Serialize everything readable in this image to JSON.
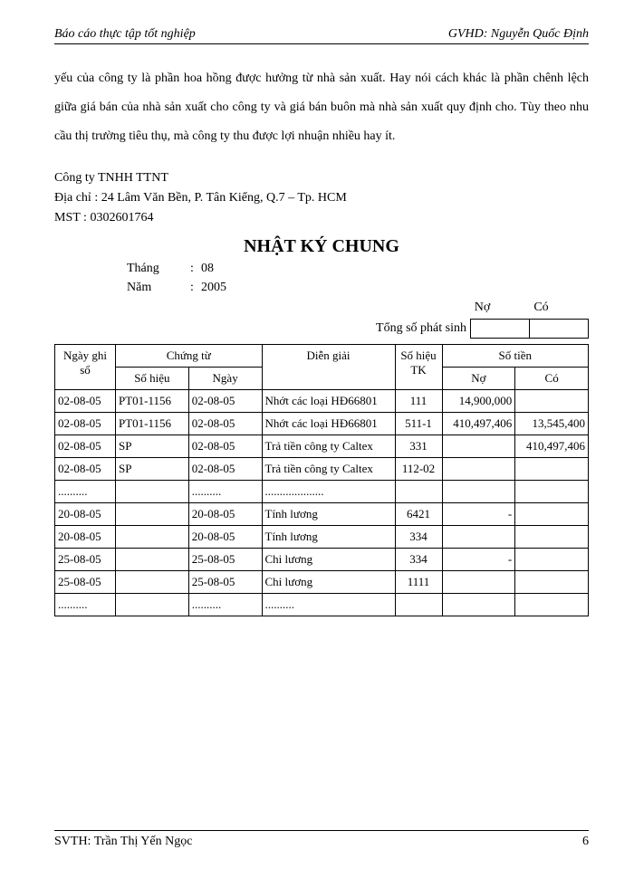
{
  "header": {
    "left": "Báo cáo thực tập tốt nghiệp",
    "right_label": "GVHD:",
    "right_name": "Nguyễn Quốc Định"
  },
  "body_paragraph": "yếu của công ty là phần hoa hồng được hưởng từ nhà sản xuất. Hay nói cách khác là phần chênh lệch giữa giá bán của nhà sản xuất cho công ty và giá bán buôn mà nhà sản xuất quy định cho. Tùy theo nhu cầu thị trường tiêu thụ, mà công ty thu được lợi nhuận nhiều hay ít.",
  "company": {
    "name": "Công ty TNHH TTNT",
    "address_label": "Địa chỉ :",
    "address": "24 Lâm Văn Bền, P. Tân Kiểng, Q.7 – Tp. HCM",
    "tax_label": "MST :",
    "tax_id": "0302601764"
  },
  "title": "NHẬT KÝ CHUNG",
  "period": {
    "month_label": "Tháng",
    "month": "08",
    "year_label": "Năm",
    "year": "2005"
  },
  "noco": {
    "debit": "Nợ",
    "credit": "Có"
  },
  "total_label": "Tổng số phát sinh",
  "table": {
    "headers": {
      "date": "Ngày ghi sổ",
      "voucher": "Chứng từ",
      "voucher_no": "Số hiệu",
      "voucher_date": "Ngày",
      "desc": "Diễn giải",
      "acct": "Số hiệu TK",
      "amount": "Số tiền",
      "debit": "Nợ",
      "credit": "Có"
    },
    "rows": [
      {
        "date": "02-08-05",
        "vno": "PT01-1156",
        "vdate": "02-08-05",
        "desc": "Nhớt các loại HĐ66801",
        "acct": "111",
        "debit": "14,900,000",
        "credit": ""
      },
      {
        "date": "02-08-05",
        "vno": "PT01-1156",
        "vdate": "02-08-05",
        "desc": "Nhớt các loại HĐ66801",
        "acct": "511-1",
        "debit": "410,497,406",
        "credit": "13,545,400"
      },
      {
        "date": "02-08-05",
        "vno": "SP",
        "vdate": "02-08-05",
        "desc": "Trả tiền công ty Caltex",
        "acct": "331",
        "debit": "",
        "credit": "410,497,406"
      },
      {
        "date": "02-08-05",
        "vno": "SP",
        "vdate": "02-08-05",
        "desc": "Trả tiền công ty Caltex",
        "acct": "112-02",
        "debit": "",
        "credit": ""
      },
      {
        "date": "..........",
        "vno": "",
        "vdate": "..........",
        "desc": "....................",
        "acct": "",
        "debit": "",
        "credit": ""
      },
      {
        "date": "20-08-05",
        "vno": "",
        "vdate": "20-08-05",
        "desc": "Tính lương",
        "acct": "6421",
        "debit": "-",
        "credit": ""
      },
      {
        "date": "20-08-05",
        "vno": "",
        "vdate": "20-08-05",
        "desc": "Tính lương",
        "acct": "334",
        "debit": "",
        "credit": ""
      },
      {
        "date": "25-08-05",
        "vno": "",
        "vdate": "25-08-05",
        "desc": "Chi lương",
        "acct": "334",
        "debit": "-",
        "credit": ""
      },
      {
        "date": "25-08-05",
        "vno": "",
        "vdate": "25-08-05",
        "desc": "Chi lương",
        "acct": "1111",
        "debit": "",
        "credit": ""
      },
      {
        "date": "..........",
        "vno": "",
        "vdate": "..........",
        "desc": "..........",
        "acct": "",
        "debit": "",
        "credit": ""
      }
    ]
  },
  "footer": {
    "left_label": "SVTH:",
    "left_name": "Trần Thị Yến Ngọc",
    "page": "6"
  }
}
